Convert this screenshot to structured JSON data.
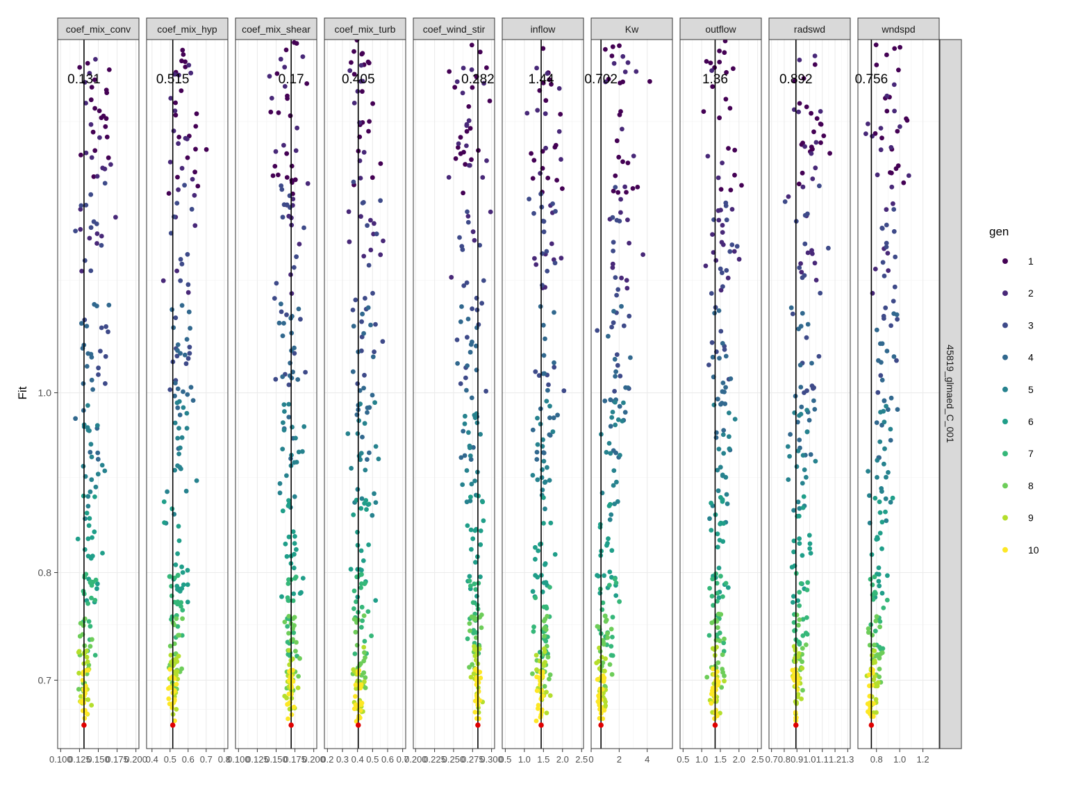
{
  "chart_data": {
    "type": "scatter",
    "ylabel": "Fit",
    "y_scale": "log",
    "yticks": [
      "0.7",
      "0.8",
      "1.0"
    ],
    "ytick_values": [
      0.7,
      0.8,
      1.0
    ],
    "ylim": [
      0.643,
      1.55
    ],
    "row_strip": "45819_glmaed_C_001",
    "legend": {
      "title": "gen",
      "position": "right",
      "entries": [
        "1",
        "2",
        "3",
        "4",
        "5",
        "6",
        "7",
        "8",
        "9",
        "10"
      ],
      "colors": [
        "#440154",
        "#482878",
        "#3E4A89",
        "#31688E",
        "#26828E",
        "#1F9E89",
        "#35B779",
        "#6DCD59",
        "#B4DE2C",
        "#FDE725"
      ]
    },
    "best_point_color": "#E00000",
    "best_fit": 0.662,
    "panels": [
      {
        "name": "coef_mix_conv",
        "xlim": [
          0.096,
          0.204
        ],
        "ticks": [
          0.1,
          0.125,
          0.15,
          0.175,
          0.2
        ],
        "tick_labels": [
          "0.100",
          "0.125",
          "0.150",
          "0.175",
          "0.200"
        ],
        "best": 0.131,
        "label": "0.131"
      },
      {
        "name": "coef_mix_hyp",
        "xlim": [
          0.37,
          0.82
        ],
        "ticks": [
          0.4,
          0.5,
          0.6,
          0.7,
          0.8
        ],
        "tick_labels": [
          "0.4",
          "0.5",
          "0.6",
          "0.7",
          "0.8"
        ],
        "best": 0.515,
        "label": "0.515"
      },
      {
        "name": "coef_mix_shear",
        "xlim": [
          0.096,
          0.204
        ],
        "ticks": [
          0.1,
          0.125,
          0.15,
          0.175,
          0.2
        ],
        "tick_labels": [
          "0.100",
          "0.125",
          "0.150",
          "0.175",
          "0.200"
        ],
        "best": 0.17,
        "label": "0.17"
      },
      {
        "name": "coef_mix_turb",
        "xlim": [
          0.18,
          0.72
        ],
        "ticks": [
          0.2,
          0.3,
          0.4,
          0.5,
          0.6,
          0.7
        ],
        "tick_labels": [
          "0.2",
          "0.3",
          "0.4",
          "0.5",
          "0.6",
          "0.7"
        ],
        "best": 0.405,
        "label": "0.405"
      },
      {
        "name": "coef_wind_stir",
        "xlim": [
          0.197,
          0.304
        ],
        "ticks": [
          0.2,
          0.225,
          0.25,
          0.275,
          0.3
        ],
        "tick_labels": [
          "0.200",
          "0.225",
          "0.250",
          "0.275",
          "0.300"
        ],
        "best": 0.282,
        "label": "0.282"
      },
      {
        "name": "inflow",
        "xlim": [
          0.42,
          2.55
        ],
        "ticks": [
          0.5,
          1.0,
          1.5,
          2.0,
          2.5
        ],
        "tick_labels": [
          "0.5",
          "1.0",
          "1.5",
          "2.0",
          "2.5"
        ],
        "best": 1.44,
        "label": "1.44"
      },
      {
        "name": "Kw",
        "xlim": [
          0.0,
          5.8
        ],
        "ticks": [
          0,
          2,
          4
        ],
        "tick_labels": [
          "0",
          "2",
          "4"
        ],
        "best": 0.702,
        "label": "0.702"
      },
      {
        "name": "outflow",
        "xlim": [
          0.42,
          2.6
        ],
        "ticks": [
          0.5,
          1.0,
          1.5,
          2.0,
          2.5
        ],
        "tick_labels": [
          "0.5",
          "1.0",
          "1.5",
          "2.0",
          "2.5"
        ],
        "best": 1.36,
        "label": "1.36"
      },
      {
        "name": "radswd",
        "xlim": [
          0.68,
          1.32
        ],
        "ticks": [
          0.7,
          0.8,
          0.9,
          1.0,
          1.1,
          1.2,
          1.3
        ],
        "tick_labels": [
          "0.7",
          "0.8",
          "0.9",
          "1.0",
          "1.1",
          "1.2",
          "1.3"
        ],
        "best": 0.892,
        "label": "0.892"
      },
      {
        "name": "wndspd",
        "xlim": [
          0.64,
          1.34
        ],
        "ticks": [
          0.8,
          1.0,
          1.2
        ],
        "tick_labels": [
          "0.8",
          "1.0",
          "1.2"
        ],
        "best": 0.756,
        "label": "0.756"
      }
    ],
    "generation_fit_ranges": [
      [
        1.28,
        1.55
      ],
      [
        1.13,
        1.52
      ],
      [
        1.0,
        1.3
      ],
      [
        0.92,
        1.12
      ],
      [
        0.85,
        0.99
      ],
      [
        0.77,
        0.88
      ],
      [
        0.72,
        0.8
      ],
      [
        0.69,
        0.76
      ],
      [
        0.67,
        0.73
      ],
      [
        0.665,
        0.71
      ]
    ],
    "points_per_panel_per_generation": 20
  }
}
